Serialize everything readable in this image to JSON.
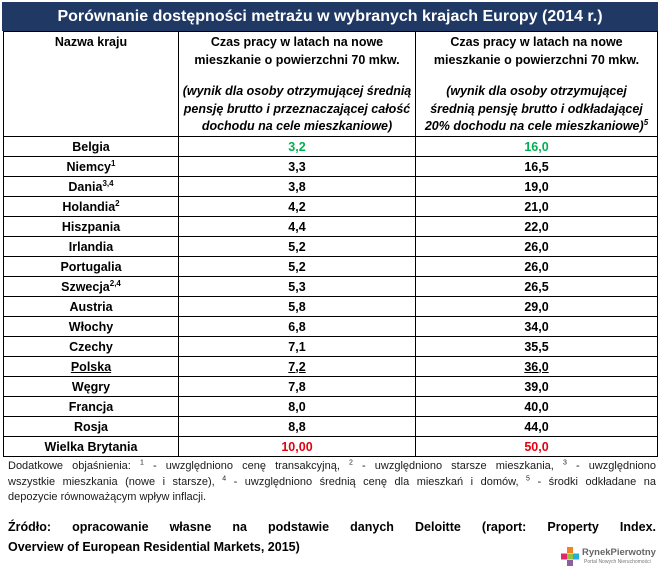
{
  "colors": {
    "title_bar": "#1f3864",
    "title_text": "#ffffff",
    "border": "#000000"
  },
  "chart_data": {
    "type": "table",
    "title": "Porównanie dostępności metrażu w wybranych krajach Europy (2014 r.)",
    "columns": [
      {
        "header_lines": [
          "Nazwa kraju"
        ],
        "note_lines": []
      },
      {
        "header_lines": [
          "Czas pracy w latach na nowe",
          "mieszkanie o powierzchni 70 mkw."
        ],
        "note_lines": [
          "(wynik dla osoby otrzymującej średnią",
          "pensję brutto i przeznaczającej całość",
          "dochodu na cele mieszkaniowe)"
        ]
      },
      {
        "header_lines": [
          "Czas pracy w latach na nowe",
          "mieszkanie o powierzchni 70 mkw."
        ],
        "note_lines": [
          "(wynik dla osoby otrzymującej",
          "średnią pensję brutto i odkładającej",
          "20% dochodu na cele mieszkaniowe)"
        ],
        "note_mark": "5"
      }
    ],
    "rows": [
      {
        "country": "Belgia",
        "values": [
          "3,2",
          "16,0"
        ],
        "color": "#00b050"
      },
      {
        "country": "Niemcy",
        "marks": "1",
        "values": [
          "3,3",
          "16,5"
        ]
      },
      {
        "country": "Dania",
        "marks": "3,4",
        "values": [
          "3,8",
          "19,0"
        ]
      },
      {
        "country": "Holandia",
        "marks": "2",
        "values": [
          "4,2",
          "21,0"
        ]
      },
      {
        "country": "Hiszpania",
        "values": [
          "4,4",
          "22,0"
        ]
      },
      {
        "country": "Irlandia",
        "values": [
          "5,2",
          "26,0"
        ]
      },
      {
        "country": "Portugalia",
        "values": [
          "5,2",
          "26,0"
        ]
      },
      {
        "country": "Szwecja",
        "marks": "2,4",
        "values": [
          "5,3",
          "26,5"
        ]
      },
      {
        "country": "Austria",
        "values": [
          "5,8",
          "29,0"
        ]
      },
      {
        "country": "Włochy",
        "values": [
          "6,8",
          "34,0"
        ]
      },
      {
        "country": "Czechy",
        "values": [
          "7,1",
          "35,5"
        ]
      },
      {
        "country": "Polska",
        "values": [
          "7,2",
          "36,0"
        ],
        "underline": true
      },
      {
        "country": "Węgry",
        "values": [
          "7,8",
          "39,0"
        ]
      },
      {
        "country": "Francja",
        "values": [
          "8,0",
          "40,0"
        ]
      },
      {
        "country": "Rosja",
        "values": [
          "8,8",
          "44,0"
        ]
      },
      {
        "country": "Wielka Brytania",
        "values": [
          "10,00",
          "50,0"
        ],
        "color": "#e3000f"
      }
    ]
  },
  "footnote": {
    "lines": [
      [
        {
          "text": "Dodatkowe objaśnienia: "
        },
        {
          "mark": "1"
        },
        {
          "text": " - uwzględniono cenę transakcyjną, "
        },
        {
          "mark": "2"
        },
        {
          "text": " - uwzględniono starsze mieszkania, "
        },
        {
          "mark": "3"
        },
        {
          "text": " - uwzględniono"
        }
      ],
      [
        {
          "text": "wszystkie mieszkania (nowe i starsze), "
        },
        {
          "mark": "4"
        },
        {
          "text": " - uwzględniono średnią cenę dla mieszkań i domów, "
        },
        {
          "mark": "5"
        },
        {
          "text": " - środki odkładane na"
        }
      ],
      [
        {
          "text": "depozycie równoważącym wpływ inflacji."
        }
      ]
    ]
  },
  "source": {
    "lines": [
      "Źródło: opracowanie własne na podstawie danych Deloitte (raport: Property Index.",
      "Overview of European Residential Markets, 2015)"
    ]
  },
  "logo": {
    "name": "RynekPierwotny",
    "tagline": "Portal Nowych Nieruchomości"
  }
}
